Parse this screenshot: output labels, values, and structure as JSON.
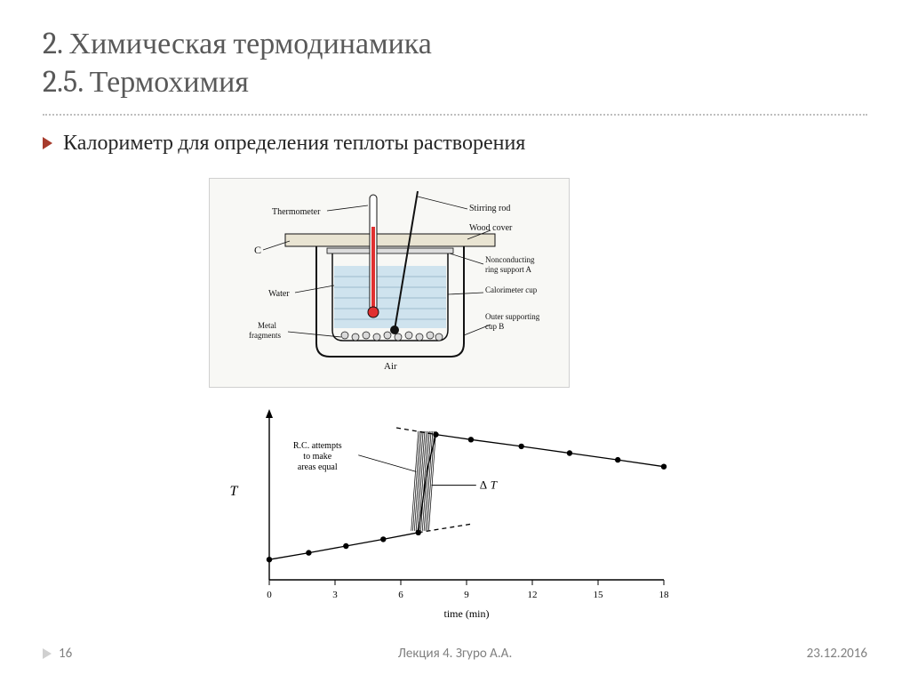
{
  "title": {
    "line1": "2. Химическая термодинамика",
    "line2": "2.5. Термохимия",
    "color": "#595959",
    "fontsize": 34
  },
  "bullet": {
    "text": "Калориметр для определения теплоты растворения",
    "marker_color": "#a73b2c",
    "text_color": "#262626",
    "fontsize": 24
  },
  "calorimeter": {
    "background": "#f6f6f1",
    "water_fill": "#cfe3ee",
    "outline": "#111111",
    "thermometer_fill": "#e03030",
    "labels": {
      "thermometer": "Thermometer",
      "stirring": "Stirring rod",
      "wood": "Wood cover",
      "ring": "Nonconducting ring support A",
      "cup": "Calorimeter cup",
      "outer": "Outer supporting cup B",
      "water": "Water",
      "metal": "Metal fragments",
      "air": "Air",
      "c": "C"
    },
    "label_fontsize": 10
  },
  "chart": {
    "type": "line",
    "xlabel": "time (min)",
    "ylabel": "T",
    "xticks": [
      0,
      3,
      6,
      9,
      12,
      15,
      18
    ],
    "xlim": [
      0,
      18
    ],
    "ylim": [
      0,
      10
    ],
    "series_before": {
      "x": [
        0,
        1.8,
        3.5,
        5.2,
        6.8
      ],
      "y": [
        1.2,
        1.6,
        2.0,
        2.4,
        2.8
      ]
    },
    "series_after": {
      "x": [
        7.6,
        9.2,
        11.5,
        13.7,
        15.9,
        18.0
      ],
      "y": [
        8.6,
        8.3,
        7.9,
        7.5,
        7.1,
        6.7
      ]
    },
    "jump_x": [
      6.8,
      7.2,
      7.6
    ],
    "jump_y": [
      2.8,
      6.5,
      8.6
    ],
    "extrap_before": {
      "x": [
        6.8,
        9.2
      ],
      "y": [
        2.8,
        3.3
      ]
    },
    "extrap_after": {
      "x": [
        5.8,
        7.6
      ],
      "y": [
        9.0,
        8.6
      ]
    },
    "delta_t_label": "ΔT",
    "note": "R.C. attempts to make areas equal",
    "marker_color": "#000000",
    "line_color": "#000000",
    "dash_color": "#000000",
    "hatch_color": "#000000",
    "label_fontsize": 12,
    "tick_fontsize": 11,
    "marker_radius": 3.2
  },
  "footer": {
    "page": "16",
    "center": "Лекция 4. Згуро А.А.",
    "date": "23.12.2016",
    "color": "#808080"
  }
}
